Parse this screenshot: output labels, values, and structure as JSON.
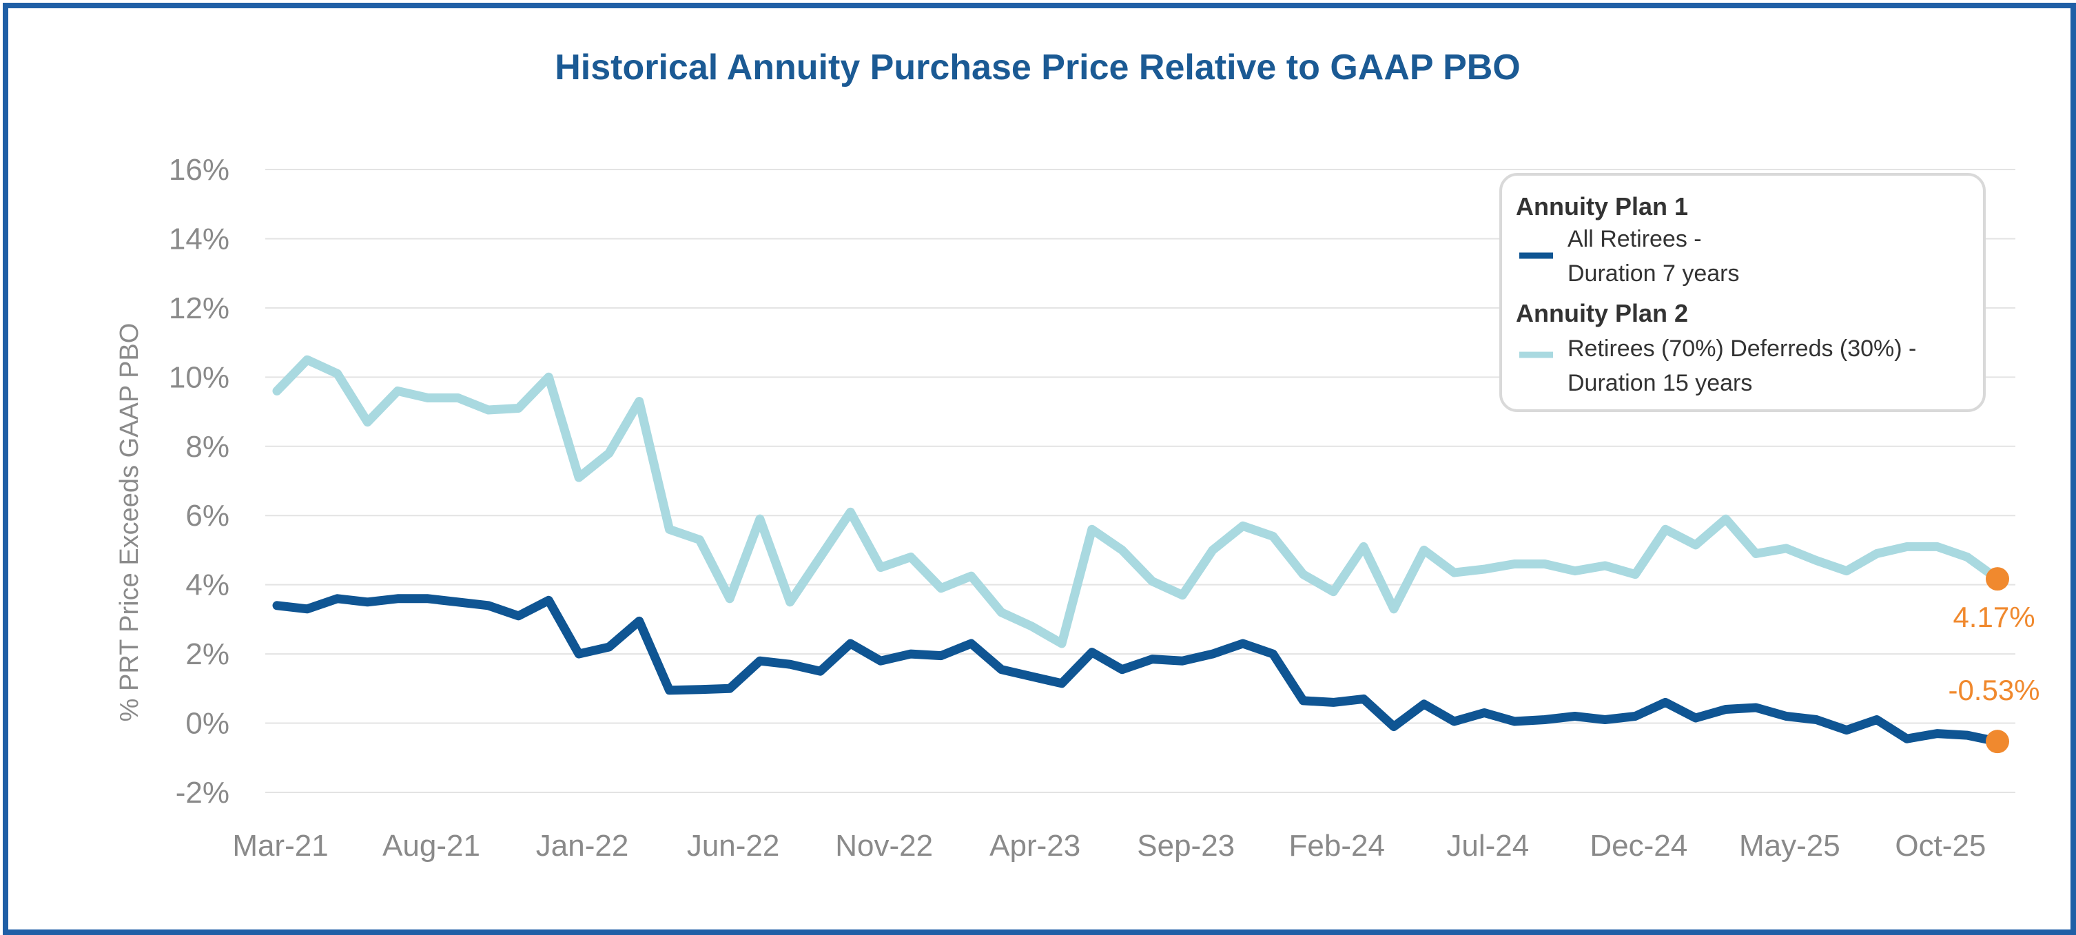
{
  "chart_data": {
    "type": "line",
    "title": "Historical Annuity Purchase Price Relative to GAAP PBO",
    "xlabel": "",
    "ylabel": "% PRT Price Exceeds GAAP PBO",
    "ylim": [
      -2,
      16
    ],
    "y_ticks": [
      -2,
      0,
      2,
      4,
      6,
      8,
      10,
      12,
      14,
      16
    ],
    "y_tick_labels": [
      "-2%",
      "0%",
      "2%",
      "4%",
      "6%",
      "8%",
      "10%",
      "12%",
      "14%",
      "16%"
    ],
    "grid": true,
    "x_start": "Mar-21",
    "x_tick_labels": [
      "Mar-21",
      "Aug-21",
      "Jan-22",
      "Jun-22",
      "Nov-22",
      "Apr-23",
      "Sep-23",
      "Feb-24",
      "Jul-24",
      "Dec-24",
      "May-25",
      "Oct-25"
    ],
    "x_tick_indices": [
      0,
      5,
      10,
      15,
      20,
      25,
      30,
      35,
      40,
      45,
      50,
      55
    ],
    "series": [
      {
        "name": "Annuity Plan 2",
        "legend_group": "Annuity Plan 2",
        "legend_line1": "Retirees (70%) Deferreds (30%) -",
        "legend_line2": "Duration 15 years",
        "color": "#a9d9e0",
        "values": [
          9.6,
          10.5,
          10.1,
          8.7,
          9.6,
          9.4,
          9.4,
          9.05,
          9.1,
          10.0,
          7.1,
          7.8,
          9.3,
          5.6,
          5.3,
          3.6,
          5.9,
          3.5,
          4.8,
          6.1,
          4.5,
          4.8,
          3.9,
          4.25,
          3.2,
          2.8,
          2.3,
          5.6,
          5.0,
          4.1,
          3.7,
          5.0,
          5.7,
          5.4,
          4.3,
          3.8,
          5.1,
          3.3,
          5.0,
          4.35,
          4.45,
          4.6,
          4.6,
          4.4,
          4.55,
          4.3,
          5.6,
          5.15,
          5.9,
          4.9,
          5.05,
          4.7,
          4.4,
          4.9,
          5.1,
          5.1,
          4.8,
          4.17
        ]
      },
      {
        "name": "Annuity Plan 1",
        "legend_group": "Annuity Plan 1",
        "legend_line1": "All Retirees -",
        "legend_line2": "Duration 7 years",
        "color": "#0f5593",
        "values": [
          3.4,
          3.3,
          3.6,
          3.5,
          3.6,
          3.6,
          3.5,
          3.4,
          3.1,
          3.55,
          2.0,
          2.2,
          2.95,
          0.95,
          0.97,
          1.0,
          1.8,
          1.7,
          1.5,
          2.3,
          1.8,
          2.0,
          1.95,
          2.3,
          1.55,
          1.35,
          1.15,
          2.05,
          1.55,
          1.85,
          1.8,
          2.0,
          2.3,
          2.0,
          0.65,
          0.6,
          0.7,
          -0.1,
          0.55,
          0.05,
          0.3,
          0.05,
          0.1,
          0.2,
          0.1,
          0.2,
          0.6,
          0.15,
          0.4,
          0.45,
          0.2,
          0.1,
          -0.2,
          0.1,
          -0.45,
          -0.3,
          -0.35,
          -0.53
        ]
      }
    ],
    "annotations": [
      {
        "series": "Annuity Plan 2",
        "label": "4.17%",
        "value": 4.17,
        "color": "#f0892e"
      },
      {
        "series": "Annuity Plan 1",
        "label": "-0.53%",
        "value": -0.53,
        "color": "#f0892e"
      }
    ],
    "legend_position": "top-right"
  }
}
